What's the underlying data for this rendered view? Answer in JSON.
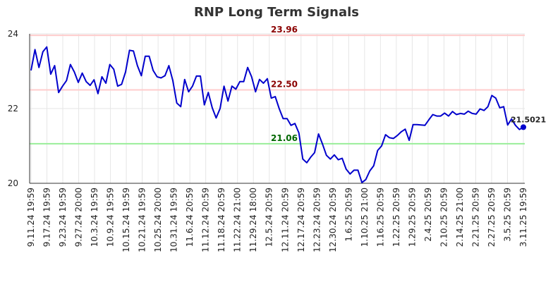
{
  "page": {
    "title": "RNP Long Term Signals"
  },
  "colors": {
    "line": "#0000cc",
    "grid": "#e6e6e6",
    "axis": "#333333",
    "resistance": "#ffcccc",
    "resistance_label": "#8b0000",
    "support": "#99ee99",
    "support_label": "#006600"
  },
  "chart_data": {
    "type": "line",
    "title": "RNP Long Term Signals",
    "xlabel": "",
    "ylabel": "",
    "ylim": [
      20,
      24
    ],
    "yticks": [
      20,
      22,
      24
    ],
    "grid": true,
    "x_tick_labels": [
      "9.11.24 19:59",
      "9.17.24 19:59",
      "9.23.24 19:59",
      "9.27.24 20:00",
      "10.3.24 19:59",
      "10.9.24 19:59",
      "10.15.24 19:59",
      "10.21.24 19:59",
      "10.25.24 20:00",
      "10.31.24 19:59",
      "11.6.24 20:59",
      "11.12.24 20:59",
      "11.18.24 20:59",
      "11.22.24 21:00",
      "11.29.24 18:00",
      "12.5.24 20:59",
      "12.11.24 20:59",
      "12.17.24 20:59",
      "12.23.24 20:59",
      "12.30.24 20:59",
      "1.6.25 20:59",
      "1.10.25 21:00",
      "1.16.25 20:59",
      "1.22.25 20:59",
      "1.29.25 20:59",
      "2.4.25 20:59",
      "2.10.25 20:59",
      "2.14.25 21:00",
      "2.21.25 20:59",
      "2.27.25 20:59",
      "3.5.25 20:59",
      "3.11.25 19:59"
    ],
    "reference_lines": [
      {
        "label": "23.96",
        "value": 23.96,
        "kind": "resistance"
      },
      {
        "label": "22.50",
        "value": 22.5,
        "kind": "resistance"
      },
      {
        "label": "21.06",
        "value": 21.06,
        "kind": "support"
      }
    ],
    "last_value_label": "21.5021",
    "series": [
      {
        "values": [
          23.02,
          23.58,
          23.1,
          23.52,
          23.65,
          22.92,
          23.15,
          22.43,
          22.6,
          22.75,
          23.18,
          22.98,
          22.7,
          22.95,
          22.72,
          22.62,
          22.77,
          22.4,
          22.85,
          22.68,
          23.18,
          23.05,
          22.6,
          22.65,
          22.98,
          23.56,
          23.54,
          23.15,
          22.88,
          23.4,
          23.4,
          23.02,
          22.85,
          22.82,
          22.88,
          23.15,
          22.75,
          22.15,
          22.05,
          22.78,
          22.45,
          22.6,
          22.87,
          22.87,
          22.1,
          22.43,
          22.02,
          21.75,
          22.0,
          22.6,
          22.2,
          22.6,
          22.52,
          22.72,
          22.72,
          23.1,
          22.85,
          22.45,
          22.78,
          22.68,
          22.8,
          22.28,
          22.32,
          22.0,
          21.73,
          21.73,
          21.55,
          21.6,
          21.35,
          20.65,
          20.55,
          20.7,
          20.82,
          21.32,
          21.05,
          20.75,
          20.65,
          20.76,
          20.63,
          20.67,
          20.38,
          20.25,
          20.35,
          20.35,
          20.02,
          20.1,
          20.33,
          20.47,
          20.88,
          21.0,
          21.3,
          21.22,
          21.2,
          21.28,
          21.38,
          21.45,
          21.15,
          21.57,
          21.57,
          21.56,
          21.55,
          21.7,
          21.84,
          21.8,
          21.8,
          21.88,
          21.8,
          21.92,
          21.84,
          21.87,
          21.85,
          21.93,
          21.87,
          21.85,
          21.99,
          21.95,
          22.05,
          22.35,
          22.28,
          22.02,
          22.05,
          21.56,
          21.72,
          21.55,
          21.44,
          21.5021
        ]
      }
    ]
  }
}
